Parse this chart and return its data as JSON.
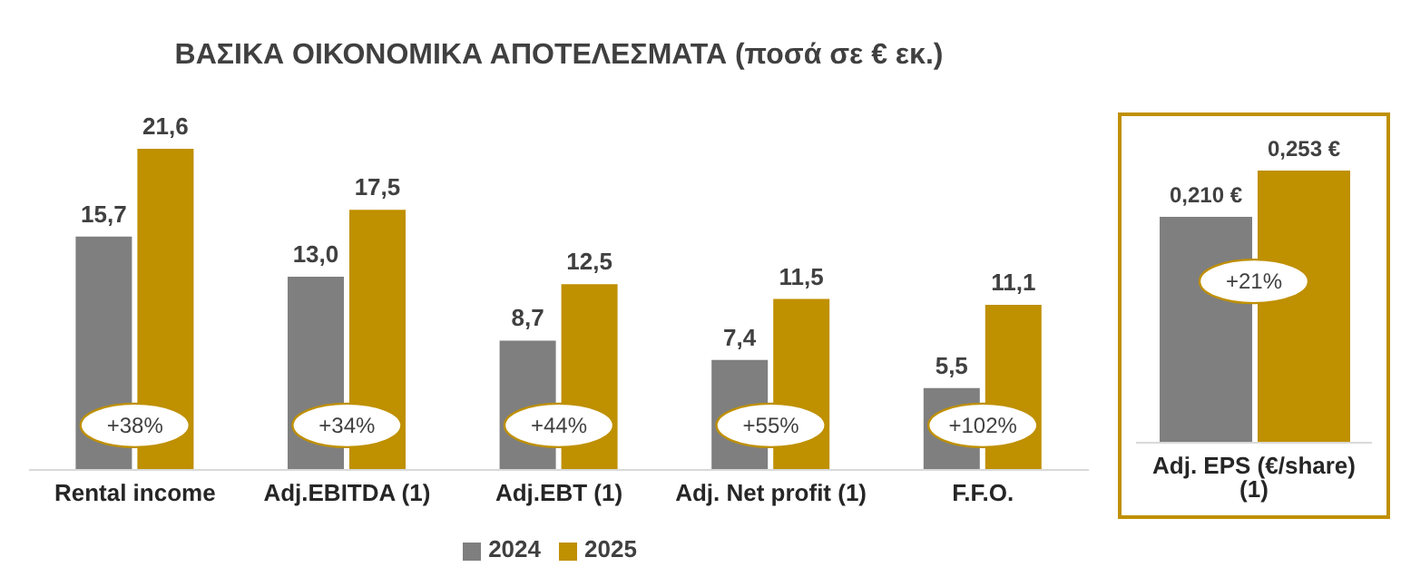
{
  "chart_data": [
    {
      "type": "bar",
      "title": "ΒΑΣΙΚΑ ΟΙΚΟΝΟΜΙΚΑ ΑΠΟΤΕΛΕΣΜΑΤΑ (ποσά σε € εκ.)",
      "categories": [
        "Rental income",
        "Adj.EBITDA (1)",
        "Adj.EBT (1)",
        "Adj. Net profit (1)",
        "F.F.O."
      ],
      "series": [
        {
          "name": "2024",
          "color": "#7f7f7f",
          "values": [
            15.7,
            13.0,
            8.7,
            7.4,
            5.5
          ],
          "value_labels": [
            "15,7",
            "13,0",
            "8,7",
            "7,4",
            "5,5"
          ]
        },
        {
          "name": "2025",
          "color": "#bf9000",
          "values": [
            21.6,
            17.5,
            12.5,
            11.5,
            11.1
          ],
          "value_labels": [
            "21,6",
            "17,5",
            "12,5",
            "11,5",
            "11,1"
          ]
        }
      ],
      "annotations": [
        {
          "text": "+38%",
          "x": "Rental income",
          "y": 3
        },
        {
          "text": "+34%",
          "x": "Adj.EBITDA (1)",
          "y": 3
        },
        {
          "text": "+44%",
          "x": "Adj.EBT (1)",
          "y": 3
        },
        {
          "text": "+55%",
          "x": "Adj. Net profit (1)",
          "y": 3
        },
        {
          "text": "+102%",
          "x": "F.F.O.",
          "y": 3
        }
      ],
      "legend": "bottom"
    },
    {
      "type": "bar",
      "categories": [
        "Adj. EPS (€/share) (1)"
      ],
      "series": [
        {
          "color": "#7f7f7f",
          "values": [
            0.21
          ],
          "value_labels": [
            "0,210 €"
          ]
        },
        {
          "color": "#bf9000",
          "values": [
            0.253
          ],
          "value_labels": [
            "0,253 €"
          ]
        }
      ],
      "annotations": [
        {
          "text": "+21%",
          "x": "Adj. EPS (€/share) (1)",
          "y": 0.15
        }
      ]
    }
  ]
}
